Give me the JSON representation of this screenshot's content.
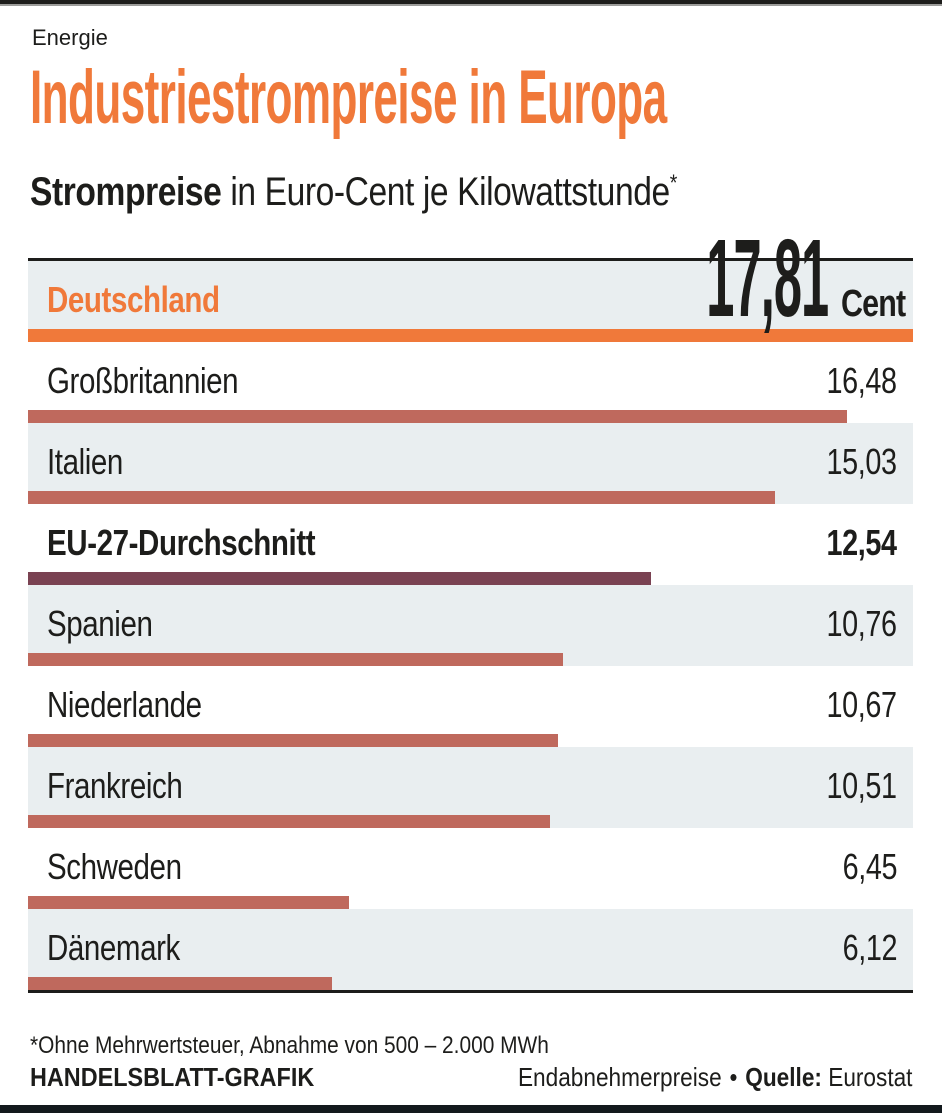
{
  "page": {
    "kicker": "Energie",
    "title": "Industriestrompreise in Europa",
    "subtitle_bold": "Strompreise",
    "subtitle_rest": " in Euro-Cent je Kilowattstunde",
    "subtitle_note_marker": "*",
    "footnote": "*Ohne Mehrwertsteuer, Abnahme von 500 – 2.000 MWh",
    "credit": "HANDELSBLATT-GRAFIK",
    "source_prefix": "Endabnehmerpreise",
    "source_separator": "•",
    "source_label": "Quelle:",
    "source_value": "Eurostat"
  },
  "chart_data": {
    "type": "bar",
    "orientation": "horizontal",
    "title": "Industriestrompreise in Europa",
    "subtitle": "Strompreise in Euro-Cent je Kilowattstunde*",
    "unit": "Euro-Cent je Kilowattstunde",
    "unit_label": "Cent",
    "max_value": 17.81,
    "categories": [
      "Deutschland",
      "Großbritannien",
      "Italien",
      "EU-27-Durchschnitt",
      "Spanien",
      "Niederlande",
      "Frankreich",
      "Schweden",
      "Dänemark"
    ],
    "values": [
      17.81,
      16.48,
      15.03,
      12.54,
      10.76,
      10.67,
      10.51,
      6.45,
      6.12
    ],
    "rows": [
      {
        "label": "Deutschland",
        "value": 17.81,
        "value_label": "17,81",
        "style": "highlight",
        "shaded": true,
        "big": true
      },
      {
        "label": "Großbritannien",
        "value": 16.48,
        "value_label": "16,48",
        "style": "normal",
        "shaded": false,
        "big": false
      },
      {
        "label": "Italien",
        "value": 15.03,
        "value_label": "15,03",
        "style": "normal",
        "shaded": true,
        "big": false
      },
      {
        "label": "EU-27-Durchschnitt",
        "value": 12.54,
        "value_label": "12,54",
        "style": "average",
        "shaded": false,
        "big": false
      },
      {
        "label": "Spanien",
        "value": 10.76,
        "value_label": "10,76",
        "style": "normal",
        "shaded": true,
        "big": false
      },
      {
        "label": "Niederlande",
        "value": 10.67,
        "value_label": "10,67",
        "style": "normal",
        "shaded": false,
        "big": false
      },
      {
        "label": "Frankreich",
        "value": 10.51,
        "value_label": "10,51",
        "style": "normal",
        "shaded": true,
        "big": false
      },
      {
        "label": "Schweden",
        "value": 6.45,
        "value_label": "6,45",
        "style": "normal",
        "shaded": false,
        "big": false
      },
      {
        "label": "Dänemark",
        "value": 6.12,
        "value_label": "6,12",
        "style": "normal",
        "shaded": true,
        "big": false
      }
    ],
    "colors": {
      "highlight": "#f0793a",
      "normal": "#bf695d",
      "average": "#7a4252",
      "shaded_bg": "#e9eef0",
      "text": "#1d1d1b"
    },
    "legend": "none",
    "grid": false
  }
}
